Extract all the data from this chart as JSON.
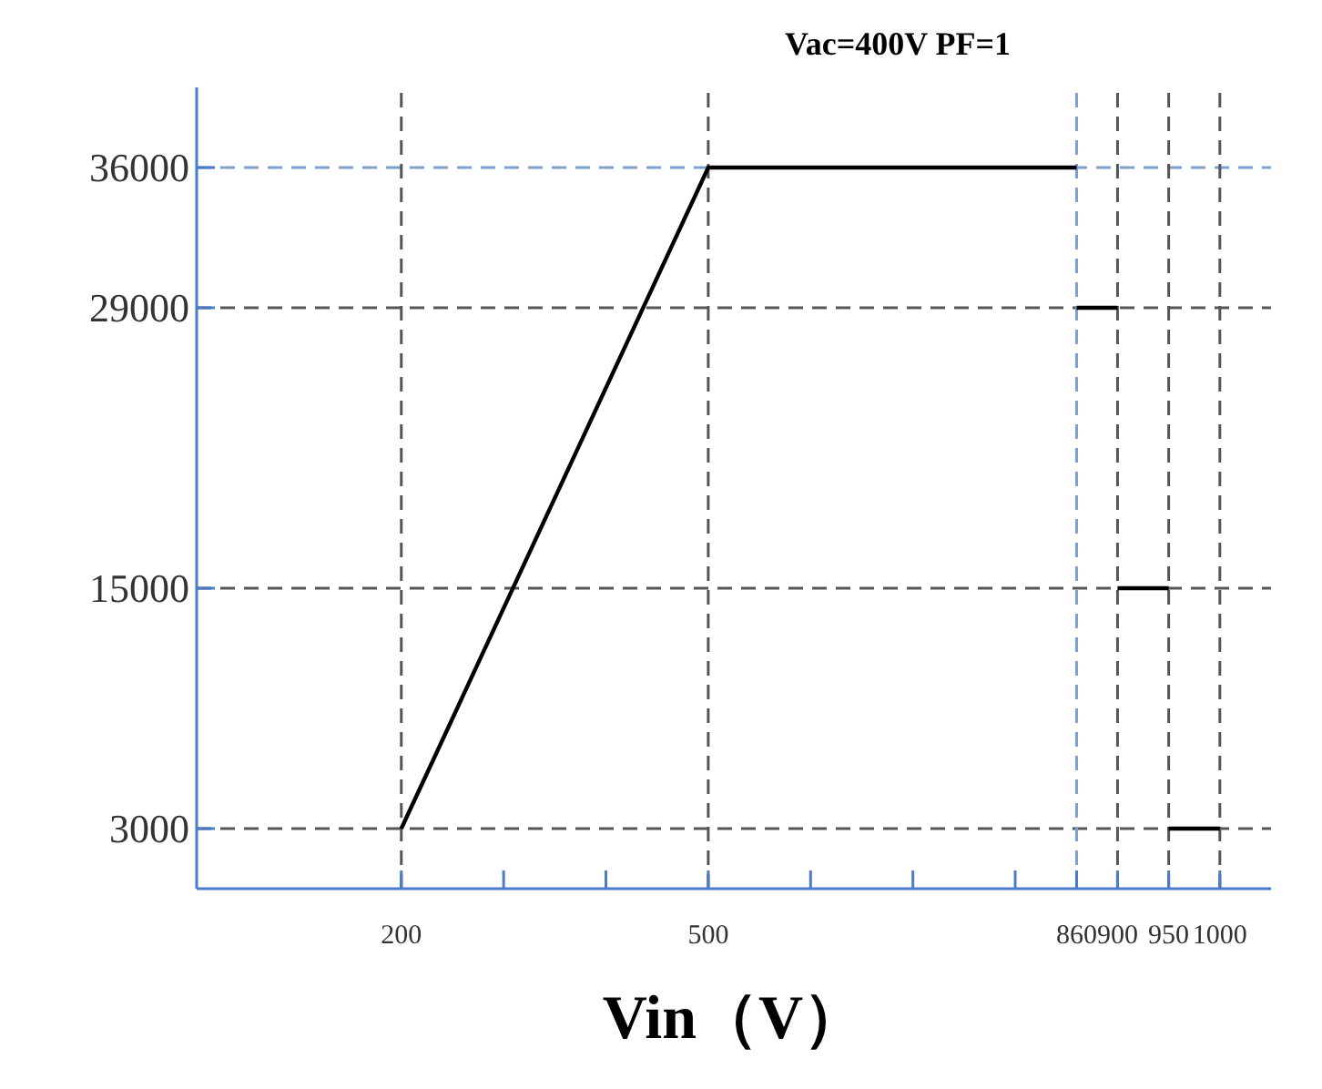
{
  "chart_data": {
    "type": "line",
    "title": "Vac=400V PF=1",
    "xlabel": "Vin（V）",
    "xlim": [
      0,
      1050
    ],
    "ylim": [
      0,
      40000
    ],
    "xticks": [
      200,
      {
        "value": 300,
        "label": null
      },
      {
        "value": 400,
        "label": null
      },
      500,
      {
        "value": 600,
        "label": null
      },
      {
        "value": 700,
        "label": null
      },
      {
        "value": 800,
        "label": null
      },
      860,
      900,
      950,
      1000
    ],
    "yticks": [
      3000,
      15000,
      29000,
      36000
    ],
    "series": [
      {
        "color": "#000000",
        "x": [
          200,
          500,
          860
        ],
        "values": [
          3000,
          36000,
          36000
        ]
      },
      {
        "color": "#000000",
        "x": [
          860,
          900
        ],
        "values": [
          29000,
          29000
        ]
      },
      {
        "color": "#000000",
        "x": [
          900,
          950
        ],
        "values": [
          15000,
          15000
        ]
      },
      {
        "color": "#000000",
        "x": [
          950,
          1000
        ],
        "values": [
          3000,
          3000
        ]
      }
    ],
    "ref_lines": [
      {
        "axis": "y",
        "value": 36000,
        "color": "#7f9fcf",
        "line_style": "dashed"
      },
      {
        "axis": "y",
        "value": 29000,
        "color": "#555555",
        "line_style": "dashed"
      },
      {
        "axis": "y",
        "value": 15000,
        "color": "#555555",
        "line_style": "dashed"
      },
      {
        "axis": "y",
        "value": 3000,
        "color": "#555555",
        "line_style": "dashed"
      },
      {
        "axis": "x",
        "value": 200,
        "color": "#555555",
        "line_style": "dashed"
      },
      {
        "axis": "x",
        "value": 500,
        "color": "#555555",
        "line_style": "dashed"
      },
      {
        "axis": "x",
        "value": 860,
        "color": "#7f9fcf",
        "line_style": "dashed"
      },
      {
        "axis": "x",
        "value": 900,
        "color": "#555555",
        "line_style": "dashed"
      },
      {
        "axis": "x",
        "value": 950,
        "color": "#555555",
        "line_style": "dashed"
      },
      {
        "axis": "x",
        "value": 1000,
        "color": "#555555",
        "line_style": "dashed"
      }
    ],
    "grid": false,
    "marker": "none",
    "line_style": "solid"
  }
}
